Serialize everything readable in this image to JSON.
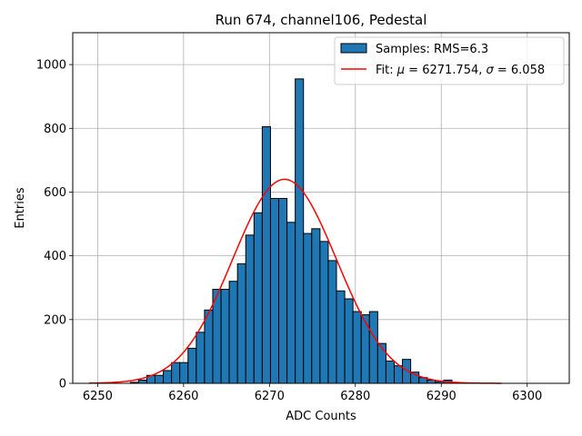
{
  "chart_data": {
    "type": "bar",
    "title": "Run 674, channel106, Pedestal",
    "xlabel": "ADC Counts",
    "ylabel": "Entries",
    "xlim": [
      6247.1,
      6304.9
    ],
    "ylim": [
      0,
      1100
    ],
    "xticks": [
      6250,
      6260,
      6270,
      6280,
      6290,
      6300
    ],
    "yticks": [
      0,
      200,
      400,
      600,
      800,
      1000
    ],
    "grid": true,
    "legend": {
      "placement": "top-right",
      "entries": [
        {
          "label": "Samples: RMS=6.3",
          "kind": "patch",
          "color": "#1f77b4"
        },
        {
          "label_prefix": "Fit: ",
          "mu_symbol": "μ",
          "mu_text": " = 6271.754, ",
          "sigma_symbol": "σ",
          "sigma_text": " = 6.058",
          "kind": "line",
          "color": "#ff0000"
        }
      ]
    },
    "histogram": {
      "name": "Samples: RMS=6.3",
      "color": "#1f77b4",
      "edgecolor": "#000000",
      "bin_width": 0.96,
      "bin_starts": [
        6249.0,
        6249.96,
        6250.92,
        6251.88,
        6252.84,
        6253.8,
        6254.76,
        6255.72,
        6256.68,
        6257.64,
        6258.6,
        6259.56,
        6260.52,
        6261.48,
        6262.44,
        6263.4,
        6264.36,
        6265.32,
        6266.28,
        6267.24,
        6268.2,
        6269.16,
        6270.12,
        6271.08,
        6272.04,
        6273.0,
        6273.96,
        6274.92,
        6275.88,
        6276.84,
        6277.8,
        6278.76,
        6279.72,
        6280.68,
        6281.64,
        6282.6,
        6283.56,
        6284.52,
        6285.48,
        6286.44,
        6287.4,
        6288.36,
        6289.32,
        6290.28,
        6291.24,
        6292.2,
        6293.16,
        6294.12,
        6295.08,
        6296.04
      ],
      "counts": [
        0,
        0,
        0,
        0,
        0,
        3,
        10,
        25,
        25,
        40,
        65,
        65,
        110,
        160,
        230,
        295,
        295,
        320,
        375,
        465,
        535,
        805,
        580,
        580,
        505,
        955,
        470,
        485,
        445,
        385,
        290,
        265,
        225,
        215,
        225,
        125,
        70,
        55,
        75,
        35,
        18,
        10,
        5,
        10,
        0,
        0,
        0,
        0,
        0,
        0
      ]
    },
    "fit": {
      "name": "Fit",
      "color": "#ff0000",
      "mu": 6271.754,
      "sigma": 6.058,
      "amplitude": 640,
      "x_range": [
        6249,
        6297
      ]
    }
  }
}
